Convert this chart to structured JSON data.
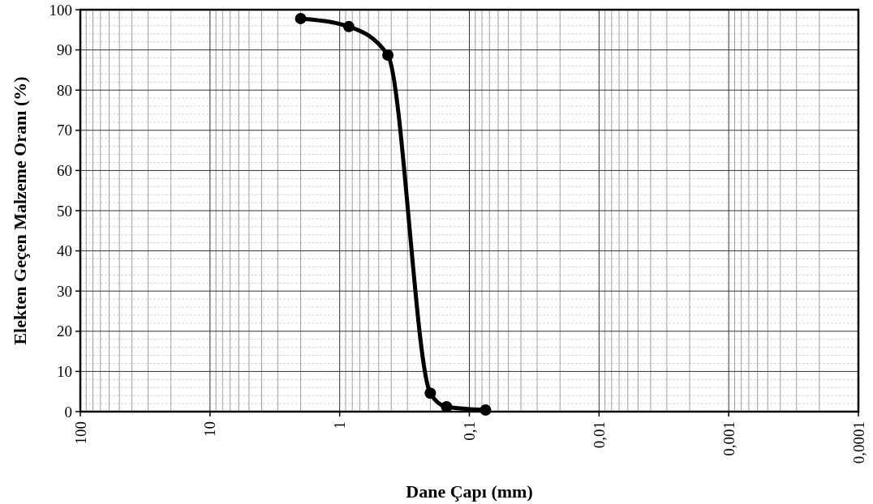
{
  "chart_data": {
    "type": "line",
    "xlabel": "Dane Çapı (mm)",
    "ylabel": "Elekten Geçen Malzeme Oranı (%)",
    "log": "x",
    "grid": true,
    "marker": "circle",
    "line_style": "solid",
    "xlim": [
      100,
      0.0001
    ],
    "xticks": [
      100,
      10,
      1,
      {
        "value": 0.1,
        "label": "0,1"
      },
      {
        "value": 0.01,
        "label": "0,01"
      },
      {
        "value": 0.001,
        "label": "0,001"
      },
      {
        "value": 0.0001,
        "label": "0,0001"
      }
    ],
    "ylim": [
      0,
      100
    ],
    "yticks": [
      0,
      10,
      20,
      30,
      40,
      50,
      60,
      70,
      80,
      90,
      100
    ],
    "series": [
      {
        "color": "#000000",
        "x": [
          2,
          0.85,
          0.425,
          0.2,
          0.15,
          0.075
        ],
        "values": [
          97.8,
          95.8,
          88.7,
          4.6,
          1.2,
          0.4
        ]
      }
    ]
  }
}
